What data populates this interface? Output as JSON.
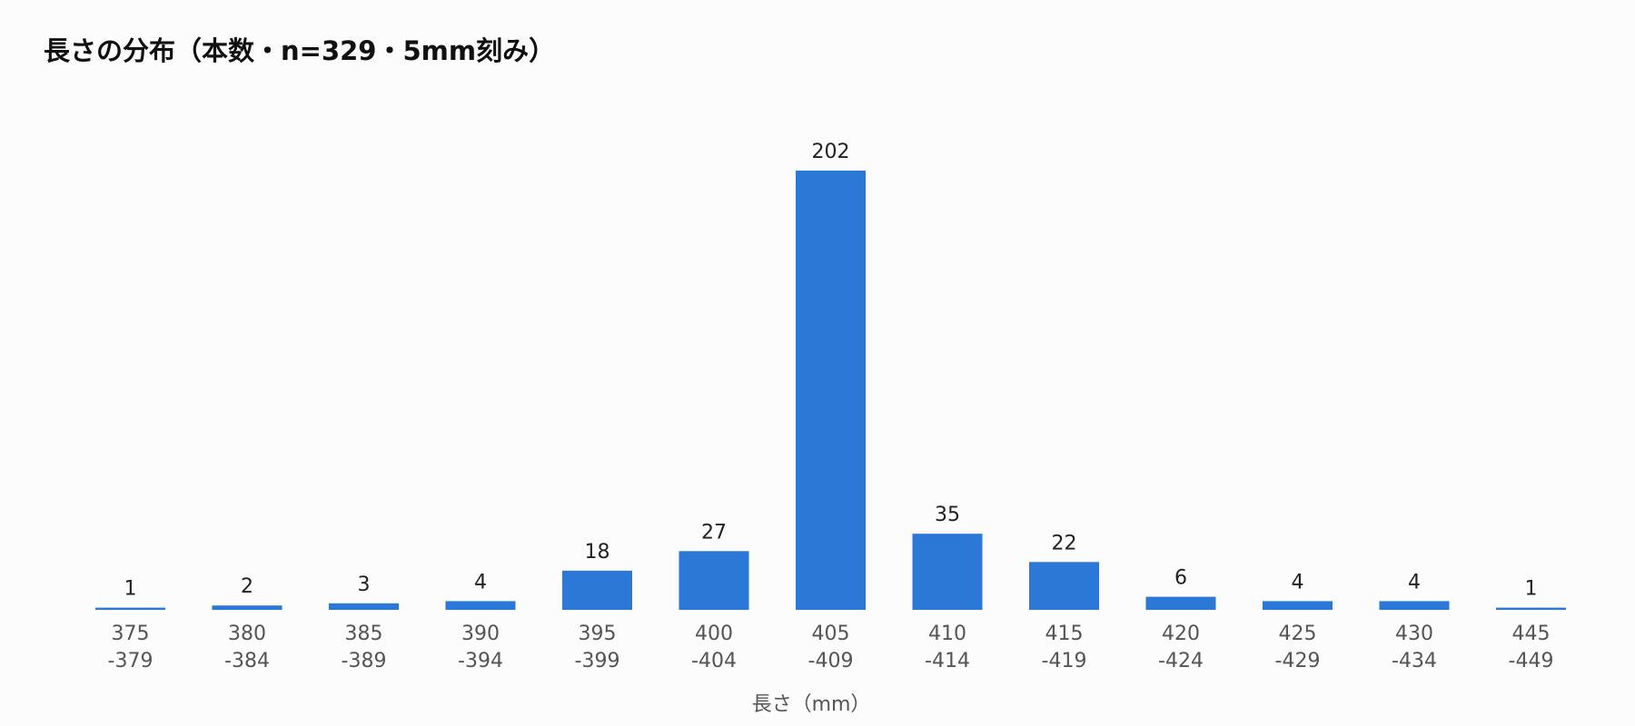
{
  "chart_data": {
    "type": "bar",
    "title": "長さの分布（本数・n=329・5mm刻み）",
    "x_label": "長さ（mm）",
    "categories": [
      "375\n-379",
      "380\n-384",
      "385\n-389",
      "390\n-394",
      "395\n-399",
      "400\n-404",
      "405\n-409",
      "410\n-414",
      "415\n-419",
      "420\n-424",
      "425\n-429",
      "430\n-434",
      "445\n-449"
    ],
    "values": [
      1,
      2,
      3,
      4,
      18,
      27,
      202,
      35,
      22,
      6,
      4,
      4,
      1
    ],
    "color": "#2b78d6"
  }
}
